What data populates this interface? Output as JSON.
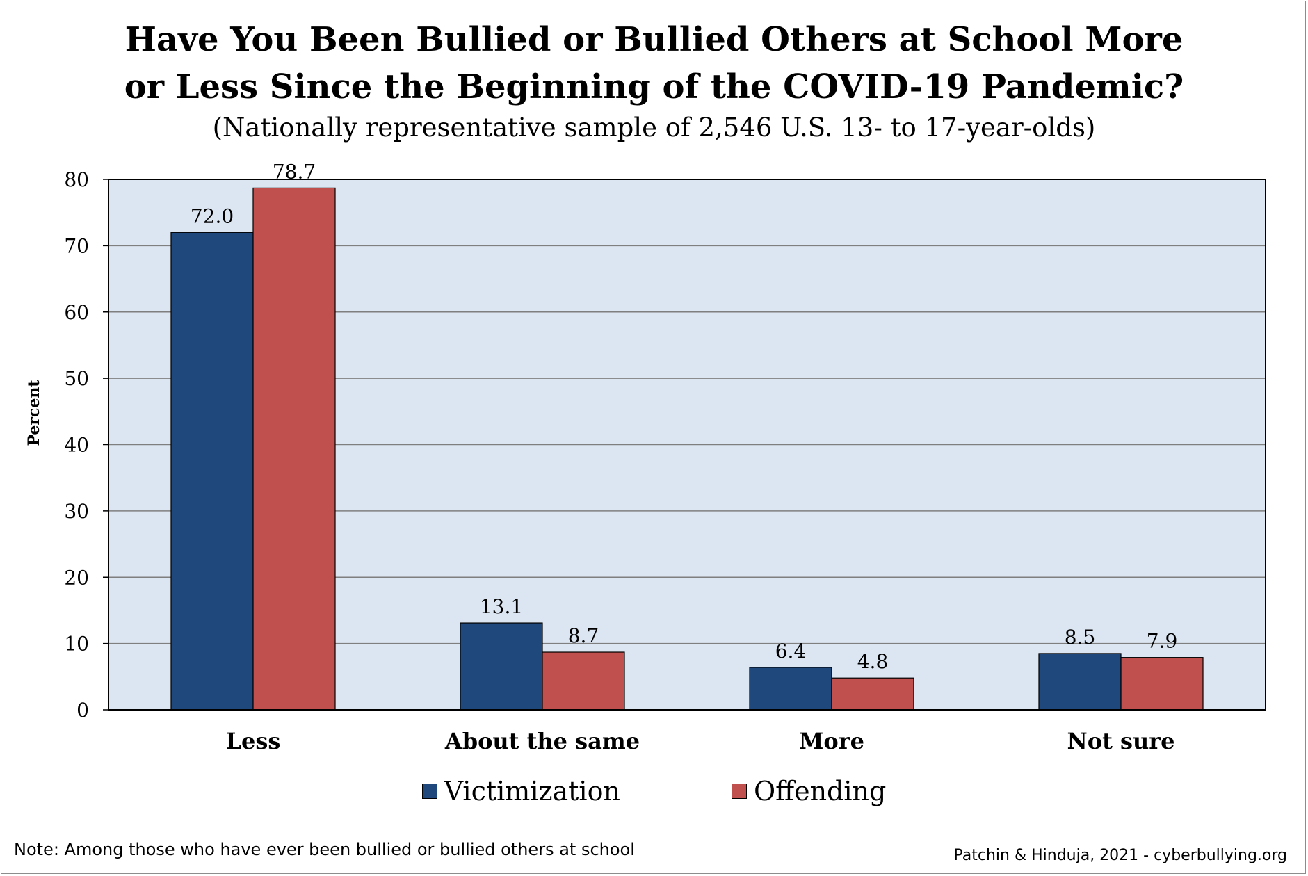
{
  "chart_data": {
    "type": "bar",
    "title_line1": "Have You Been Bullied or Bullied Others at School More",
    "title_line2": "or Less Since the Beginning of the COVID-19 Pandemic?",
    "subtitle": "(Nationally representative sample of 2,546 U.S. 13- to 17-year-olds)",
    "xlabel": "",
    "ylabel": "Percent",
    "ylim": [
      0,
      80
    ],
    "yticks": [
      "0",
      "10",
      "20",
      "30",
      "40",
      "50",
      "60",
      "70",
      "80"
    ],
    "categories": [
      "Less",
      "About the same",
      "More",
      "Not sure"
    ],
    "series": [
      {
        "name": "Victimization",
        "color": "#1f497d",
        "values": [
          72.0,
          13.1,
          6.4,
          8.5
        ],
        "labels": [
          "72.0",
          "13.1",
          "6.4",
          "8.5"
        ]
      },
      {
        "name": "Offending",
        "color": "#c0504d",
        "values": [
          78.7,
          8.7,
          4.8,
          7.9
        ],
        "labels": [
          "78.7",
          "8.7",
          "4.8",
          "7.9"
        ]
      }
    ],
    "grid": true,
    "plot_background": "#dce6f2",
    "legend_position": "bottom"
  },
  "note": "Note: Among those who have ever been bullied or bullied others at school",
  "credit": "Patchin & Hinduja, 2021 - cyberbullying.org"
}
